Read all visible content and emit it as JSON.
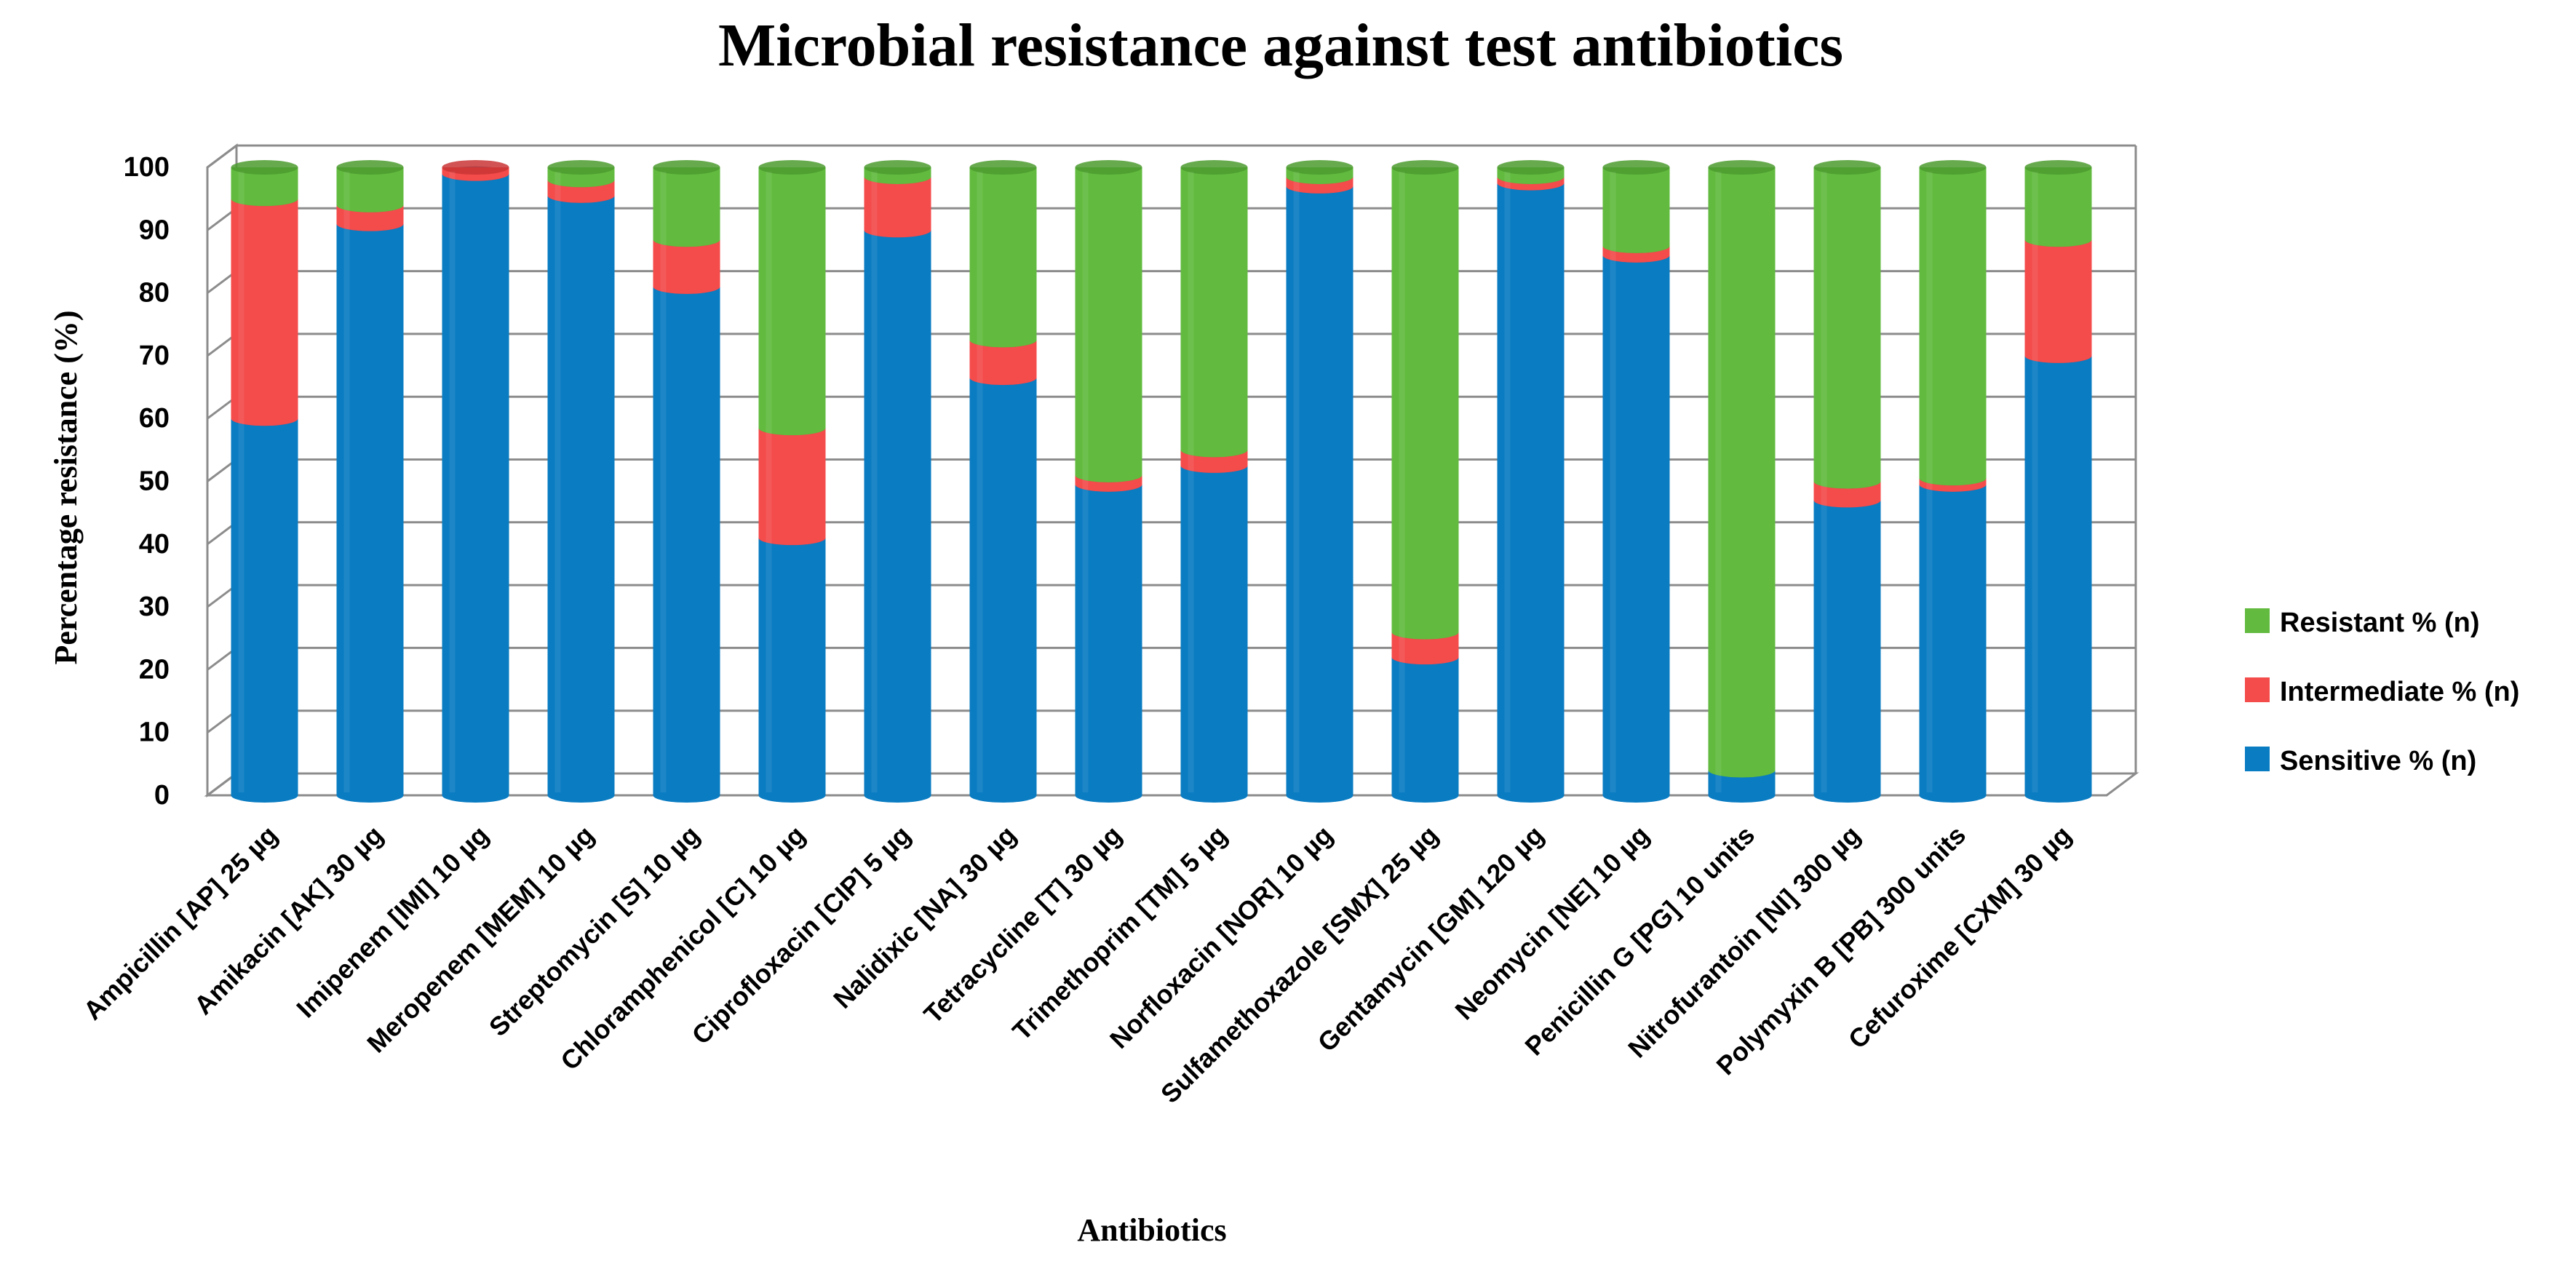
{
  "chart_data": {
    "type": "bar",
    "stacked": true,
    "title": "Microbial resistance against test antibiotics",
    "xlabel": "Antibiotics",
    "ylabel": "Percentage resistance (%)",
    "ylim": [
      0,
      100
    ],
    "yticks": [
      0,
      10,
      20,
      30,
      40,
      50,
      60,
      70,
      80,
      90,
      100
    ],
    "grid": true,
    "legend_position": "right",
    "categories": [
      "Ampicillin [AP] 25 µg",
      "Amikacin [AK] 30 µg",
      "Imipenem [IMI] 10 µg",
      "Meropenem [MEM] 10 µg",
      "Streptomycin [S] 10 µg",
      "Chloramphenicol [C]  10 µg",
      "Ciprofloxacin [CIP] 5 µg",
      "Nalidixic [NA] 30 µg",
      "Tetracycline [T] 30 µg",
      "Trimethoprim [TM] 5 µg",
      "Norfloxacin [NOR] 10 µg",
      "Sulfamethoxazole [SMX] 25 µg",
      "Gentamycin [GM] 120 µg",
      "Neomycin [NE] 10 µg",
      "Penicillin G [PG] 10 units",
      "Nitrofurantoin [NI] 300 µg",
      "Polymyxin B [PB] 300 units",
      "Cefuroxime [CXM] 30 µg"
    ],
    "series": [
      {
        "name": "Sensitive % (n)",
        "color": "#0a7cc2",
        "values": [
          60,
          91,
          99,
          95.5,
          81,
          41,
          90,
          66.5,
          49.5,
          52.5,
          97,
          22,
          97.5,
          86,
          4,
          47,
          49.5,
          70
        ]
      },
      {
        "name": "Intermediate % (n)",
        "color": "#f44b4b",
        "values": [
          35,
          3,
          1,
          2.5,
          7.5,
          17.5,
          8.5,
          6,
          1.5,
          2.5,
          1.5,
          4,
          1,
          1.5,
          0,
          3,
          1,
          18.5
        ]
      },
      {
        "name": "Resistant % (n)",
        "color": "#62bb3f",
        "values": [
          5,
          6,
          0,
          2,
          11.5,
          41.5,
          1.5,
          27.5,
          49,
          45,
          1.5,
          74,
          1.5,
          12.5,
          96,
          50,
          49.5,
          11.5
        ]
      }
    ]
  }
}
